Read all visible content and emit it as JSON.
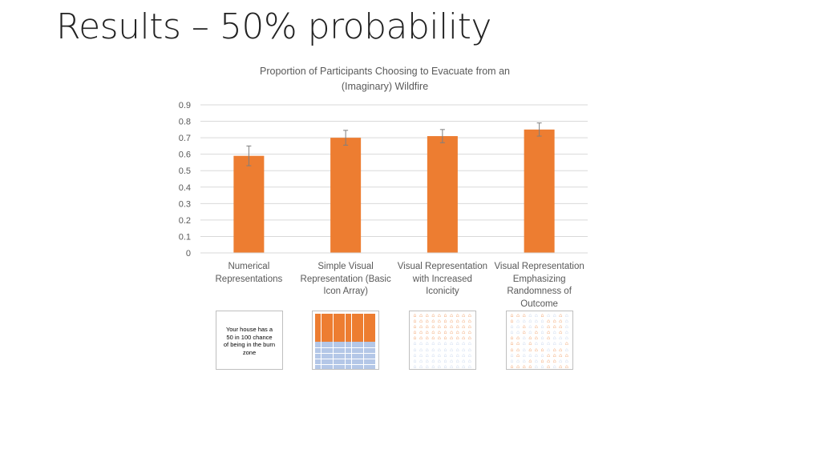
{
  "page": {
    "title": "Results – 50% probability"
  },
  "chart_data": {
    "type": "bar",
    "title_lines": [
      "Proportion of Participants Choosing to Evacuate from an",
      "(Imaginary) Wildfire"
    ],
    "categories": [
      [
        "Numerical",
        "Representations"
      ],
      [
        "Simple Visual",
        "Representation (Basic",
        "Icon Array)"
      ],
      [
        "Visual Representation",
        "with Increased",
        "Iconicity"
      ],
      [
        "Visual Representation",
        "Emphasizing",
        "Randomness of",
        "Outcome"
      ]
    ],
    "values": [
      0.59,
      0.7,
      0.71,
      0.75
    ],
    "error_bars": [
      0.06,
      0.045,
      0.04,
      0.04
    ],
    "ylim": [
      0,
      0.9
    ],
    "yticks": [
      "0",
      "0.1",
      "0.2",
      "0.3",
      "0.4",
      "0.5",
      "0.6",
      "0.7",
      "0.8",
      "0.9"
    ],
    "grid": true,
    "bar_color": "#ED7D31",
    "gridline_color": "#D9D9D9"
  },
  "thumbnails": [
    {
      "kind": "text",
      "text_lines": [
        "Your house has a",
        "50 in 100 chance",
        "of being in the burn zone"
      ]
    },
    {
      "kind": "grid",
      "filled": 50,
      "fill_color": "#ED7D31",
      "empty_color": "#B4C7E7"
    },
    {
      "kind": "icons",
      "filled": 50,
      "arrangement": "ordered",
      "icon": "house-icon",
      "fill_color": "#ED7D31",
      "empty_color": "#B4C7E7"
    },
    {
      "kind": "icons",
      "filled": 50,
      "arrangement": "random",
      "icon": "house-icon",
      "fill_color": "#ED7D31",
      "empty_color": "#B4C7E7"
    }
  ]
}
